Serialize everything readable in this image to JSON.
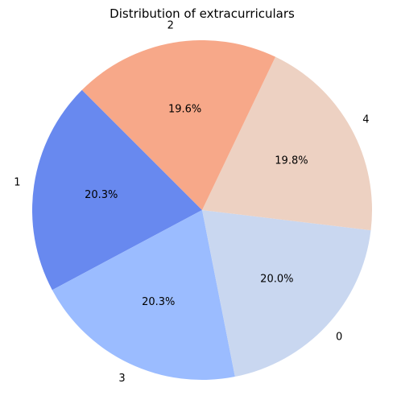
{
  "chart_data": {
    "type": "pie",
    "title": "Distribution of extracurriculars",
    "start_angle_deg": 135,
    "direction": "counterclockwise",
    "slices": [
      {
        "label": "1",
        "value": 20.3,
        "pct_label": "20.3%",
        "color": "#6889ef"
      },
      {
        "label": "3",
        "value": 20.3,
        "pct_label": "20.3%",
        "color": "#9bbcff"
      },
      {
        "label": "0",
        "value": 20.0,
        "pct_label": "20.0%",
        "color": "#c9d7f0"
      },
      {
        "label": "4",
        "value": 19.8,
        "pct_label": "19.8%",
        "color": "#edd1c2"
      },
      {
        "label": "2",
        "value": 19.6,
        "pct_label": "19.6%",
        "color": "#f7a889"
      }
    ]
  }
}
